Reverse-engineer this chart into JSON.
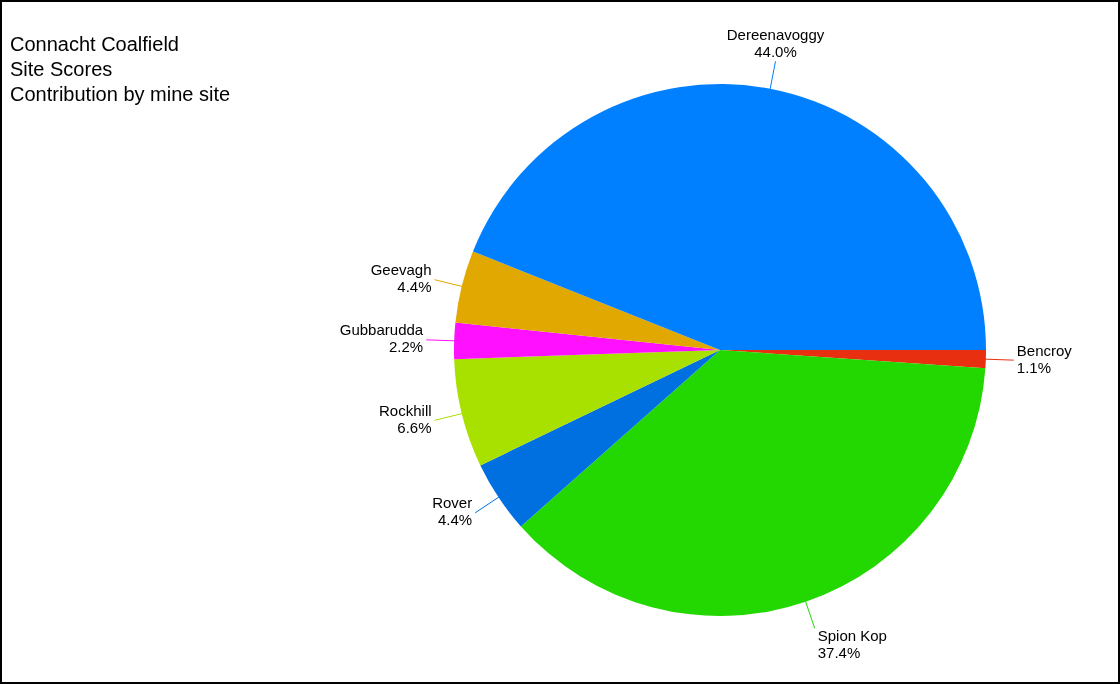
{
  "chart_data": {
    "type": "pie",
    "title": "Connacht Coalfield",
    "subtitle": "Site Scores",
    "annotations": [
      "Contribution by mine site"
    ],
    "categories": [
      "Bencroy",
      "Spion Kop",
      "Rover",
      "Rockhill",
      "Gubbarudda",
      "Geevagh",
      "Dereenavoggy"
    ],
    "values": [
      1.1,
      37.4,
      4.4,
      6.6,
      2.2,
      4.4,
      44.0
    ],
    "value_labels": [
      "1.1%",
      "37.4%",
      "4.4%",
      "6.6%",
      "2.2%",
      "4.4%",
      "44.0%"
    ],
    "colors": [
      "#e83010",
      "#22d800",
      "#0070e0",
      "#a8e000",
      "#ff10ff",
      "#e0a800",
      "#0080ff"
    ],
    "legend": false
  }
}
